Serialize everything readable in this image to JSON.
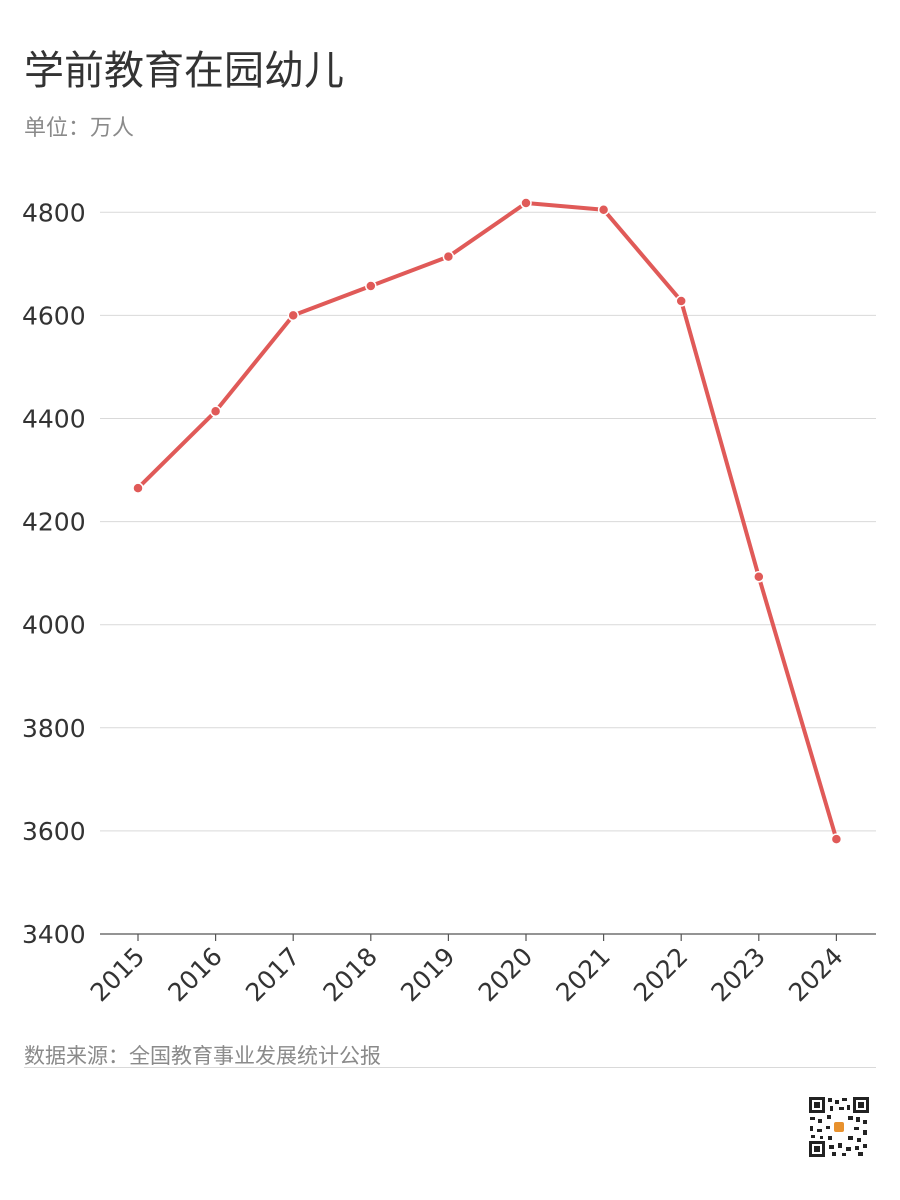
{
  "title": "学前教育在园幼儿",
  "subtitle": "单位：万人",
  "source": "数据来源：全国教育事业发展统计公报",
  "colors": {
    "line": "#e05a58",
    "grid": "#d9d9d9",
    "axis": "#555555",
    "tick_text": "#333333"
  },
  "chart_data": {
    "type": "line",
    "categories": [
      "2015",
      "2016",
      "2017",
      "2018",
      "2019",
      "2020",
      "2021",
      "2022",
      "2023",
      "2024"
    ],
    "series": [
      {
        "values": [
          4265,
          4414,
          4600,
          4657,
          4714,
          4818,
          4805,
          4628,
          4093,
          3584
        ]
      }
    ],
    "yticks": [
      3400,
      3600,
      3800,
      4000,
      4200,
      4400,
      4600,
      4800
    ],
    "ylim": [
      3400,
      4840
    ],
    "grid": true
  }
}
